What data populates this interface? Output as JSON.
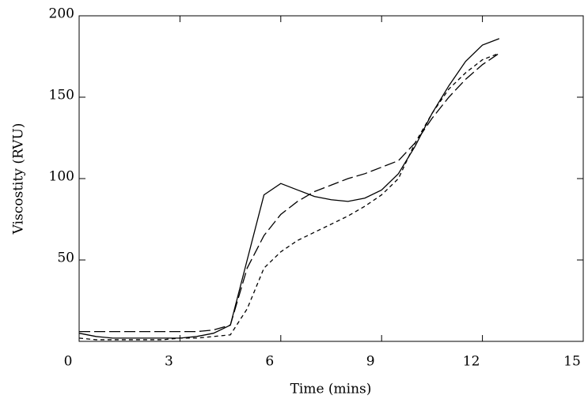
{
  "chart_data": {
    "type": "line",
    "xlabel": "Time (mins)",
    "ylabel": "Viscostity (RVU)",
    "x": [
      0,
      0.5,
      1,
      1.5,
      2,
      2.5,
      3,
      3.5,
      4,
      4.5,
      5,
      5.5,
      6,
      6.5,
      7,
      7.5,
      8,
      8.5,
      9,
      9.5,
      10,
      10.5,
      11,
      11.5,
      12,
      12.5
    ],
    "series": [
      {
        "color": "#000000",
        "style": "solid",
        "values": [
          5,
          3,
          2,
          2,
          2,
          2,
          2,
          3,
          5,
          10,
          50,
          90,
          97,
          93,
          89,
          87,
          86,
          88,
          93,
          103,
          120,
          140,
          157,
          172,
          182,
          186
        ]
      },
      {
        "color": "#000000",
        "style": "long-dash",
        "values": [
          6,
          6,
          6,
          6,
          6,
          6,
          6,
          6,
          7,
          10,
          45,
          65,
          78,
          86,
          92,
          96,
          100,
          103,
          107,
          111,
          122,
          137,
          150,
          161,
          170,
          177
        ]
      },
      {
        "color": "#000000",
        "style": "short-dash",
        "values": [
          2,
          1,
          1,
          1,
          1,
          1,
          2,
          2,
          3,
          4,
          20,
          45,
          55,
          62,
          67,
          72,
          77,
          83,
          90,
          100,
          122,
          140,
          155,
          165,
          173,
          177
        ]
      }
    ],
    "xlim": [
      0,
      15
    ],
    "xticks": [
      0,
      3,
      6,
      9,
      12,
      15
    ],
    "ylim": [
      0,
      200
    ],
    "yticks": [
      50,
      100,
      150,
      200
    ]
  }
}
